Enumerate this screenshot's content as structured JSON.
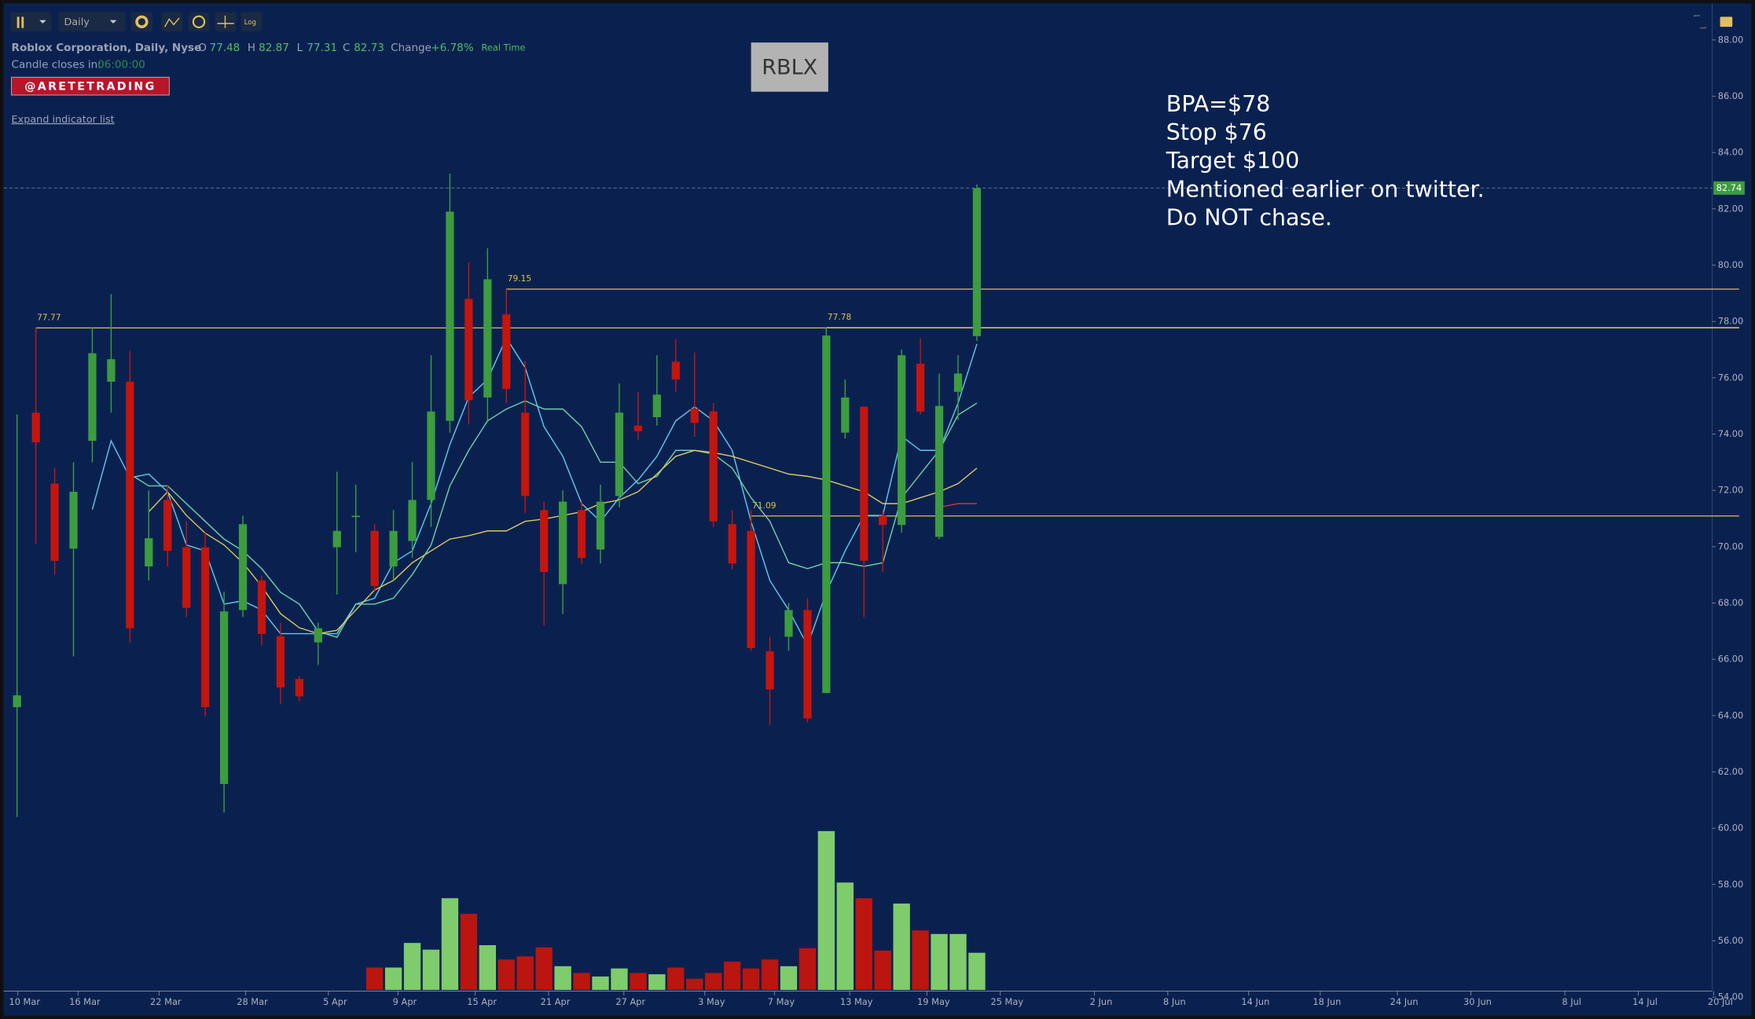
{
  "header": {
    "interval": "Daily",
    "log": "Log",
    "name": "Roblox Corporation, Daily, Nyse",
    "ohlc_keys": [
      "O",
      "H",
      "L",
      "C"
    ],
    "change_label": "Change",
    "change": "+6.78%",
    "realtime": "Real Time",
    "candle_closes": "Candle closes in:",
    "countdown": "06:00:00",
    "brand": "@ARETETRADING",
    "expand": "Expand indicator list"
  },
  "chart_data": {
    "type": "candlestick",
    "symbol": "RBLX",
    "annotations": [
      "BPA=$78",
      "Stop $76",
      "Target $100",
      "Mentioned earlier on twitter.",
      "Do NOT chase."
    ],
    "up_color": "#3c9c3f",
    "down_color": "#c4150f",
    "volume_up_color": "#7fcc6c",
    "volume_down_color": "#bb150f",
    "open": [
      64.3,
      74.76,
      72.24,
      69.93,
      73.76,
      75.86,
      75.86,
      69.3,
      71.66,
      69.98,
      69.98,
      61.57,
      67.75,
      68.8,
      66.82,
      65.3,
      66.6,
      69.98,
      71.05,
      70.56,
      69.3,
      70.2,
      71.66,
      74.47,
      78.8,
      75.3,
      78.25,
      74.76,
      71.3,
      68.67,
      71.3,
      69.9,
      71.8,
      74.3,
      74.6,
      76.57,
      74.9,
      74.8,
      70.8,
      70.56,
      66.28,
      66.8,
      67.75,
      64.8,
      74.05,
      74.97,
      71.1,
      70.77,
      76.5,
      70.35,
      75.5,
      77.48
    ],
    "high": [
      74.7,
      77.77,
      72.8,
      73.0,
      77.8,
      78.97,
      76.95,
      72.0,
      72.2,
      70.9,
      70.5,
      68.4,
      71.1,
      68.97,
      67.3,
      65.4,
      67.3,
      72.66,
      72.2,
      70.8,
      71.3,
      73.0,
      76.8,
      83.25,
      80.1,
      80.6,
      79.15,
      76.6,
      71.6,
      72.0,
      71.66,
      72.2,
      75.8,
      75.5,
      76.8,
      77.37,
      76.9,
      75.1,
      71.3,
      71.3,
      66.8,
      68.0,
      68.17,
      77.78,
      75.94,
      75.0,
      71.3,
      77.0,
      77.4,
      76.15,
      76.8,
      82.87
    ],
    "low": [
      60.4,
      70.1,
      69.0,
      66.1,
      73.0,
      74.76,
      66.6,
      68.8,
      69.3,
      67.5,
      63.97,
      60.56,
      67.5,
      66.5,
      64.4,
      64.5,
      65.8,
      68.3,
      69.8,
      68.4,
      68.8,
      69.6,
      70.7,
      74.05,
      74.34,
      74.5,
      75.1,
      71.2,
      67.2,
      67.6,
      69.4,
      69.4,
      71.4,
      73.8,
      74.3,
      75.5,
      73.9,
      70.7,
      69.2,
      66.3,
      63.67,
      66.3,
      63.76,
      64.8,
      73.84,
      67.5,
      69.1,
      70.5,
      74.7,
      70.27,
      74.5,
      77.31
    ],
    "close": [
      64.72,
      73.71,
      69.5,
      71.95,
      76.87,
      76.66,
      67.1,
      70.3,
      69.85,
      67.83,
      64.3,
      67.7,
      70.8,
      66.9,
      65.0,
      64.68,
      67.1,
      70.56,
      71.1,
      68.6,
      70.56,
      71.66,
      74.8,
      81.9,
      75.2,
      79.5,
      75.6,
      71.8,
      69.1,
      71.6,
      69.6,
      71.6,
      74.76,
      74.1,
      75.4,
      75.94,
      74.4,
      70.9,
      69.4,
      66.4,
      64.93,
      67.75,
      63.9,
      77.5,
      75.3,
      69.5,
      70.77,
      76.8,
      74.8,
      75.0,
      76.15,
      82.73
    ],
    "volume": [
      null,
      null,
      null,
      null,
      null,
      null,
      null,
      null,
      null,
      null,
      null,
      null,
      null,
      null,
      null,
      null,
      null,
      null,
      null,
      5,
      5,
      10.5,
      9,
      20.5,
      17,
      10,
      6.8,
      7.5,
      9.5,
      5.3,
      3.8,
      3,
      4.8,
      3.8,
      3.5,
      5,
      2.5,
      3.8,
      6.3,
      4.8,
      6.8,
      5.3,
      9.3,
      35.5,
      24,
      20.5,
      8.8,
      19.3,
      13.3,
      12.5,
      12.5,
      8.3
    ],
    "series": [
      {
        "color": "#5fc9ea",
        "values": [
          null,
          null,
          null,
          null,
          71.32,
          73.76,
          72.45,
          72.58,
          71.95,
          70.06,
          69.85,
          67.96,
          68.08,
          67.75,
          66.91,
          66.91,
          66.91,
          66.91,
          67.96,
          68.17,
          69.43,
          69.85,
          71.53,
          73.63,
          75.31,
          75.94,
          77.41,
          76.36,
          74.26,
          73.21,
          71.53,
          70.9,
          71.74,
          72.37,
          73.21,
          74.47,
          74.97,
          74.47,
          73.42,
          70.9,
          68.8,
          67.75,
          66.49,
          68.38,
          69.85,
          71.11,
          71.11,
          73.92,
          73.42,
          73.42,
          75.1,
          77.2
        ]
      },
      {
        "color": "#6fd0a8",
        "values": [
          null,
          null,
          null,
          null,
          null,
          null,
          72.58,
          72.16,
          72.16,
          71.53,
          70.9,
          70.27,
          69.85,
          69.22,
          68.38,
          67.96,
          66.99,
          66.78,
          67.96,
          67.96,
          68.17,
          69.01,
          70.06,
          72.16,
          73.42,
          74.47,
          74.89,
          75.18,
          74.89,
          74.89,
          74.26,
          73.0,
          73.0,
          72.24,
          72.5,
          73.42,
          73.42,
          73.29,
          72.79,
          71.74,
          70.9,
          69.43,
          69.22,
          69.43,
          69.43,
          69.3,
          69.43,
          71.74,
          72.58,
          73.42,
          74.68,
          75.1
        ]
      },
      {
        "color": "#d9c85c",
        "values": [
          null,
          null,
          null,
          null,
          null,
          null,
          null,
          71.24,
          71.95,
          71.11,
          70.48,
          70.06,
          69.43,
          68.59,
          67.62,
          67.12,
          66.91,
          67.03,
          67.75,
          68.46,
          68.8,
          69.43,
          69.85,
          70.27,
          70.39,
          70.56,
          70.56,
          70.9,
          70.98,
          71.11,
          71.24,
          71.53,
          71.66,
          71.95,
          72.58,
          73.21,
          73.42,
          73.34,
          73.21,
          73.0,
          72.79,
          72.58,
          72.5,
          72.37,
          72.16,
          71.95,
          71.53,
          71.53,
          71.74,
          71.95,
          72.24,
          72.79
        ]
      },
      {
        "color": "#c23a2e",
        "values": [
          null,
          null,
          null,
          null,
          null,
          null,
          null,
          null,
          null,
          null,
          null,
          null,
          null,
          null,
          null,
          null,
          null,
          null,
          null,
          null,
          null,
          null,
          null,
          null,
          null,
          null,
          null,
          null,
          null,
          null,
          null,
          null,
          null,
          null,
          null,
          null,
          null,
          null,
          null,
          null,
          null,
          null,
          null,
          null,
          null,
          null,
          null,
          null,
          null,
          71.4,
          71.53,
          71.53
        ]
      }
    ],
    "levels": [
      77.77,
      79.15,
      77.78,
      71.09
    ],
    "level_color": "#d9c24a",
    "last_price": 82.74,
    "last_price_color": "#3c9c3f",
    "ylim": [
      53.5,
      89.3
    ],
    "yticks": [
      {
        "value": 54,
        "label": "54.00"
      },
      {
        "value": 56,
        "label": "56.00"
      },
      {
        "value": 58,
        "label": "58.00"
      },
      {
        "value": 60,
        "label": "60.00"
      },
      {
        "value": 62,
        "label": "62.00"
      },
      {
        "value": 64,
        "label": "64.00"
      },
      {
        "value": 66,
        "label": "66.00"
      },
      {
        "value": 68,
        "label": "68.00"
      },
      {
        "value": 70,
        "label": "70.00"
      },
      {
        "value": 72,
        "label": "72.00"
      },
      {
        "value": 74,
        "label": "74.00"
      },
      {
        "value": 76,
        "label": "76.00"
      },
      {
        "value": 78,
        "label": "78.00"
      },
      {
        "value": 80,
        "label": "80.00"
      },
      {
        "value": 82,
        "label": "82.00"
      },
      {
        "value": 84,
        "label": "84.00"
      },
      {
        "value": 86,
        "label": "86.00"
      },
      {
        "value": 88,
        "label": "88.00"
      }
    ],
    "xticks": [
      {
        "value": 0.4,
        "label": "10 Mar"
      },
      {
        "value": 3.6,
        "label": "16 Mar"
      },
      {
        "value": 7.9,
        "label": "22 Mar"
      },
      {
        "value": 12.5,
        "label": "28 Mar"
      },
      {
        "value": 16.9,
        "label": "5 Apr"
      },
      {
        "value": 20.6,
        "label": "9 Apr"
      },
      {
        "value": 24.7,
        "label": "15 Apr"
      },
      {
        "value": 28.6,
        "label": "21 Apr"
      },
      {
        "value": 32.6,
        "label": "27 Apr"
      },
      {
        "value": 36.9,
        "label": "3 May"
      },
      {
        "value": 40.6,
        "label": "7 May"
      },
      {
        "value": 44.6,
        "label": "13 May"
      },
      {
        "value": 48.7,
        "label": "19 May"
      },
      {
        "value": 52.6,
        "label": "25 May"
      },
      {
        "value": 57.6,
        "label": "2 Jun"
      },
      {
        "value": 61.5,
        "label": "8 Jun"
      },
      {
        "value": 65.8,
        "label": "14 Jun"
      },
      {
        "value": 69.6,
        "label": "18 Jun"
      },
      {
        "value": 73.7,
        "label": "24 Jun"
      },
      {
        "value": 77.6,
        "label": "30 Jun"
      },
      {
        "value": 82.6,
        "label": "8 Jul"
      },
      {
        "value": 86.5,
        "label": "14 Jul"
      },
      {
        "value": 90.5,
        "label": "20 Jul"
      }
    ]
  }
}
